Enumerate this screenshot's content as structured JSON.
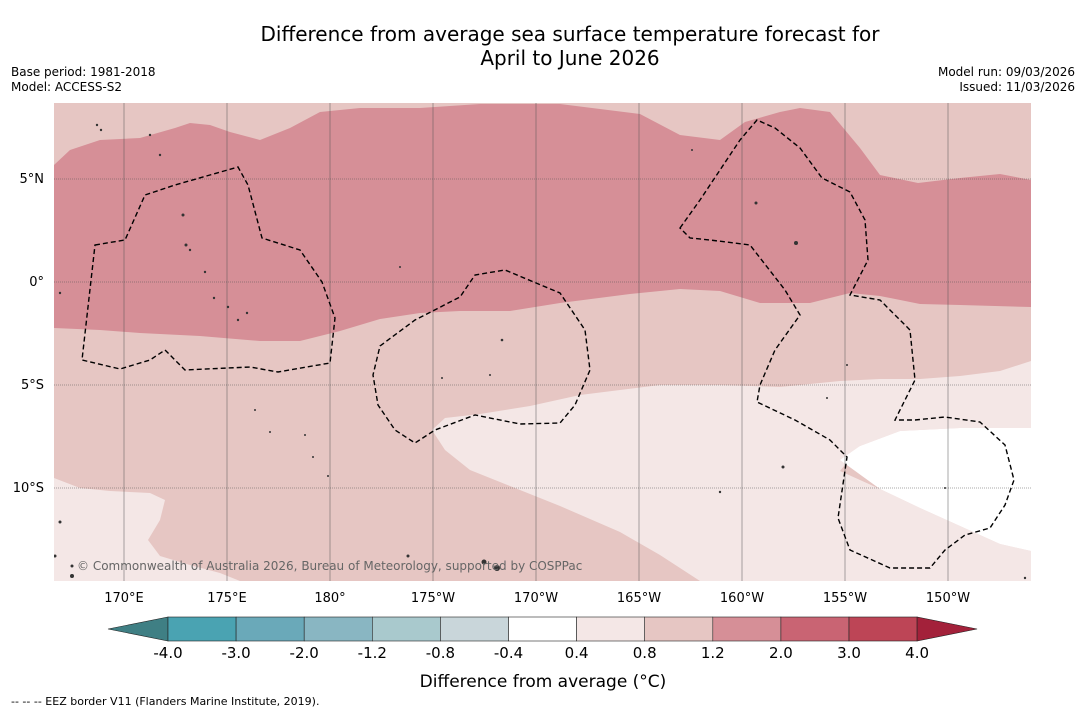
{
  "title_line1": "Difference from average sea surface temperature forecast for",
  "title_line2": "April to June 2026",
  "meta_left": {
    "base_period": "Base period: 1981-2018",
    "model": "Model: ACCESS-S2"
  },
  "meta_right": {
    "model_run": "Model run: 09/03/2026",
    "issued": "Issued: 11/03/2026"
  },
  "map": {
    "lat_labels": [
      "5°N",
      "0°",
      "5°S",
      "10°S"
    ],
    "lon_labels": [
      "170°E",
      "175°E",
      "180°",
      "175°W",
      "170°W",
      "165°W",
      "160°W",
      "155°W",
      "150°W"
    ],
    "copyright": "© Commonwealth of Australia 2026, Bureau of Meteorology, supported by COSPPac",
    "colors": {
      "band_1_2_to_2_0": "#e6c6c3",
      "band_2_0_to_3_0": "#d68f97",
      "band_0_8_to_1_2": "#f4e7e6"
    }
  },
  "colorbar": {
    "ticks": [
      "-4.0",
      "-3.0",
      "-2.0",
      "-1.2",
      "-0.8",
      "-0.4",
      "0.4",
      "0.8",
      "1.2",
      "2.0",
      "3.0",
      "4.0"
    ],
    "colors": [
      "#3f7f84",
      "#4aa3b2",
      "#6aa9b9",
      "#89b6c2",
      "#a9c9cd",
      "#c9d6da",
      "#ffffff",
      "#f4e7e6",
      "#e6c6c3",
      "#d68f97",
      "#c96473",
      "#bd4556",
      "#a3213a"
    ],
    "label": "Difference from average (°C)"
  },
  "eez_note": "--  --  -- EEZ border V11 (Flanders Marine Institute, 2019)."
}
